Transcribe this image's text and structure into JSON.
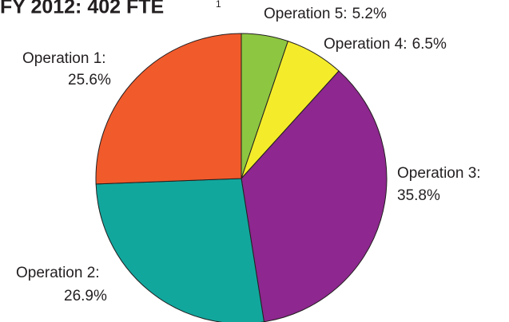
{
  "chart_data": {
    "type": "pie",
    "title": "FY 2012: 402 FTE",
    "title_note": "1",
    "categories": [
      "Operation 5:",
      "Operation 4:",
      "Operation 3:",
      "Operation 2:",
      "Operation 1:"
    ],
    "values": [
      5.2,
      6.5,
      35.8,
      26.9,
      25.6
    ],
    "value_labels": [
      "5.2%",
      "6.5%",
      "35.8%",
      "26.9%",
      "25.6%"
    ],
    "colors": [
      "#8dc641",
      "#f4ec2a",
      "#8e278f",
      "#12a79d",
      "#f15a2b"
    ]
  }
}
